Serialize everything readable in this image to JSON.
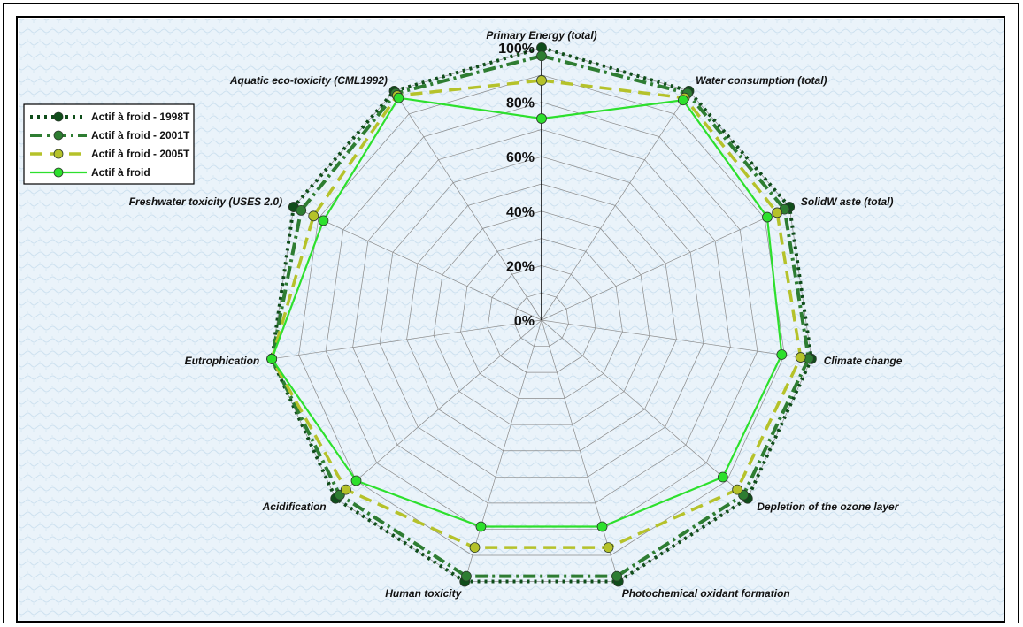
{
  "chart_data": {
    "type": "radar",
    "title": "",
    "axes": [
      "Primary Energy (total)",
      "Water consumption (total)",
      "SolidW aste (total)",
      "Climate change",
      "Depletion of the ozone layer",
      "Photochemical oxidant formation",
      "Human toxicity",
      "Acidification",
      "Eutrophication",
      "Freshwater toxicity (USES 2.0)",
      "Aquatic eco-toxicity (CML1992)"
    ],
    "radial_ticks": [
      "0%",
      "20%",
      "40%",
      "60%",
      "80%",
      "100%"
    ],
    "rlim": [
      0,
      100
    ],
    "legend_position": "top-left",
    "series": [
      {
        "name": "Actif à froid - 1998T",
        "color": "#0f4d1a",
        "dash": "dotted",
        "values": [
          100,
          100,
          100,
          100,
          100,
          100,
          100,
          100,
          100,
          100,
          100
        ]
      },
      {
        "name": "Actif à froid - 2001T",
        "color": "#2e7d32",
        "dash": "dashdot",
        "values": [
          97,
          99,
          98,
          99,
          98,
          98,
          98,
          98,
          100,
          97,
          99
        ]
      },
      {
        "name": "Actif à froid - 2005T",
        "color": "#b5c22a",
        "dash": "dashed",
        "values": [
          88,
          97,
          95,
          96,
          95,
          87,
          87,
          95,
          100,
          92,
          98
        ]
      },
      {
        "name": "Actif à froid",
        "color": "#2de02d",
        "dash": "solid",
        "values": [
          74,
          96,
          91,
          89,
          88,
          79,
          79,
          90,
          100,
          88,
          97
        ]
      }
    ]
  }
}
